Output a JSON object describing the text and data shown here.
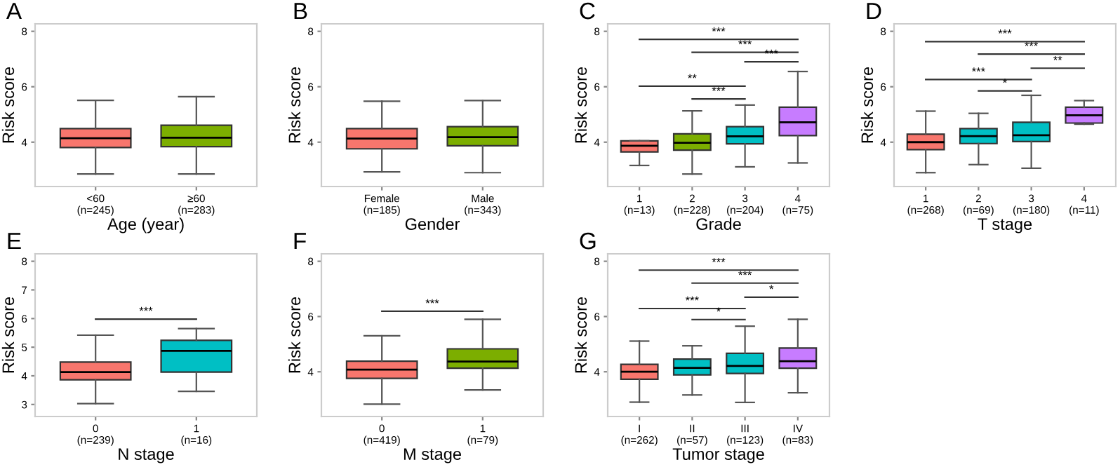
{
  "chart_data": [
    {
      "type": "box",
      "title": "A",
      "xlabel": "Age (year)",
      "ylabel": "Risk score",
      "categories": [
        "<60\n(n=245)",
        "≥60\n(n=283)"
      ],
      "colors": [
        "#f8766d",
        "#7cae00"
      ],
      "boxes": [
        {
          "low": 2.85,
          "q1": 3.81,
          "median": 4.14,
          "q3": 4.49,
          "high": 5.51
        },
        {
          "low": 2.85,
          "q1": 3.84,
          "median": 4.16,
          "q3": 4.61,
          "high": 5.64
        }
      ],
      "ylim": [
        2.4,
        8.27
      ],
      "yticks": [
        4,
        6,
        8
      ],
      "grid": false
    },
    {
      "type": "box",
      "title": "B",
      "xlabel": "Gender",
      "ylabel": "Risk score",
      "categories": [
        "Female\n(n=185)",
        "Male\n(n=343)"
      ],
      "colors": [
        "#f8766d",
        "#7cae00"
      ],
      "boxes": [
        {
          "low": 2.93,
          "q1": 3.76,
          "median": 4.13,
          "q3": 4.49,
          "high": 5.48
        },
        {
          "low": 2.9,
          "q1": 3.87,
          "median": 4.18,
          "q3": 4.56,
          "high": 5.5
        }
      ],
      "ylim": [
        2.4,
        8.27
      ],
      "yticks": [
        4,
        6,
        8
      ],
      "grid": false
    },
    {
      "type": "box",
      "title": "C",
      "xlabel": "Grade",
      "ylabel": "Risk score",
      "categories": [
        "1\n(n=13)",
        "2\n(n=228)",
        "3\n(n=204)",
        "4\n(n=75)"
      ],
      "colors": [
        "#f8766d",
        "#7cae00",
        "#00bfc4",
        "#c77cff"
      ],
      "boxes": [
        {
          "low": 3.16,
          "q1": 3.65,
          "median": 3.87,
          "q3": 4.05,
          "high": 4.05
        },
        {
          "low": 2.85,
          "q1": 3.71,
          "median": 3.98,
          "q3": 4.3,
          "high": 5.13
        },
        {
          "low": 3.11,
          "q1": 3.94,
          "median": 4.21,
          "q3": 4.56,
          "high": 5.34
        },
        {
          "low": 3.25,
          "q1": 4.24,
          "median": 4.72,
          "q3": 5.26,
          "high": 6.55
        }
      ],
      "ylim": [
        2.4,
        8.27
      ],
      "yticks": [
        4,
        6,
        8
      ],
      "grid": false,
      "annotations": [
        "***",
        "***",
        "***",
        "**",
        "***"
      ]
    },
    {
      "type": "box",
      "title": "D",
      "xlabel": "T stage",
      "ylabel": "Risk score",
      "categories": [
        "1\n(n=268)",
        "2\n(n=69)",
        "3\n(n=180)",
        "4\n(n=11)"
      ],
      "colors": [
        "#f8766d",
        "#00bfc4",
        "#00bfc4",
        "#c77cff"
      ],
      "boxes": [
        {
          "low": 2.9,
          "q1": 3.73,
          "median": 4.0,
          "q3": 4.29,
          "high": 5.12
        },
        {
          "low": 3.19,
          "q1": 3.95,
          "median": 4.22,
          "q3": 4.49,
          "high": 5.04
        },
        {
          "low": 3.06,
          "q1": 4.02,
          "median": 4.25,
          "q3": 4.72,
          "high": 5.69
        },
        {
          "low": 4.65,
          "q1": 4.69,
          "median": 4.97,
          "q3": 5.26,
          "high": 5.5
        }
      ],
      "ylim": [
        2.4,
        8.27
      ],
      "yticks": [
        4,
        6,
        8
      ],
      "grid": false,
      "annotations": [
        "***",
        "***",
        "**",
        "***",
        "*"
      ]
    },
    {
      "type": "box",
      "title": "E",
      "xlabel": "N stage",
      "ylabel": "Risk score",
      "categories": [
        "0\n(n=239)",
        "1\n(n=16)"
      ],
      "colors": [
        "#f8766d",
        "#00bfc4"
      ],
      "boxes": [
        {
          "low": 3.03,
          "q1": 3.86,
          "median": 4.13,
          "q3": 4.48,
          "high": 5.42
        },
        {
          "low": 3.46,
          "q1": 4.13,
          "median": 4.87,
          "q3": 5.24,
          "high": 5.65
        }
      ],
      "ylim": [
        2.58,
        8.26
      ],
      "yticks": [
        3,
        4,
        5,
        6,
        7,
        8
      ],
      "grid": false,
      "annotations": [
        "***"
      ]
    },
    {
      "type": "box",
      "title": "F",
      "xlabel": "M stage",
      "ylabel": "Risk score",
      "categories": [
        "0\n(n=419)",
        "1\n(n=79)"
      ],
      "colors": [
        "#f8766d",
        "#7cae00"
      ],
      "boxes": [
        {
          "low": 2.83,
          "q1": 3.76,
          "median": 4.08,
          "q3": 4.38,
          "high": 5.3
        },
        {
          "low": 3.34,
          "q1": 4.13,
          "median": 4.37,
          "q3": 4.83,
          "high": 5.9
        }
      ],
      "ylim": [
        2.38,
        8.27
      ],
      "yticks": [
        4,
        6,
        8
      ],
      "grid": false,
      "annotations": [
        "***"
      ]
    },
    {
      "type": "box",
      "title": "G",
      "xlabel": "Tumor stage",
      "ylabel": "Risk score",
      "categories": [
        "I\n(n=262)",
        "II\n(n=57)",
        "III\n(n=123)",
        "IV\n(n=83)"
      ],
      "colors": [
        "#f8766d",
        "#00bfc4",
        "#00bfc4",
        "#c77cff"
      ],
      "boxes": [
        {
          "low": 2.9,
          "q1": 3.73,
          "median": 4.0,
          "q3": 4.27,
          "high": 5.11
        },
        {
          "low": 3.16,
          "q1": 3.89,
          "median": 4.14,
          "q3": 4.46,
          "high": 4.94
        },
        {
          "low": 2.89,
          "q1": 3.94,
          "median": 4.21,
          "q3": 4.67,
          "high": 5.65
        },
        {
          "low": 3.24,
          "q1": 4.13,
          "median": 4.38,
          "q3": 4.86,
          "high": 5.9
        }
      ],
      "ylim": [
        2.38,
        8.27
      ],
      "yticks": [
        4,
        6,
        8
      ],
      "grid": false,
      "annotations": [
        "***",
        "***",
        "*",
        "***",
        "*"
      ]
    }
  ]
}
